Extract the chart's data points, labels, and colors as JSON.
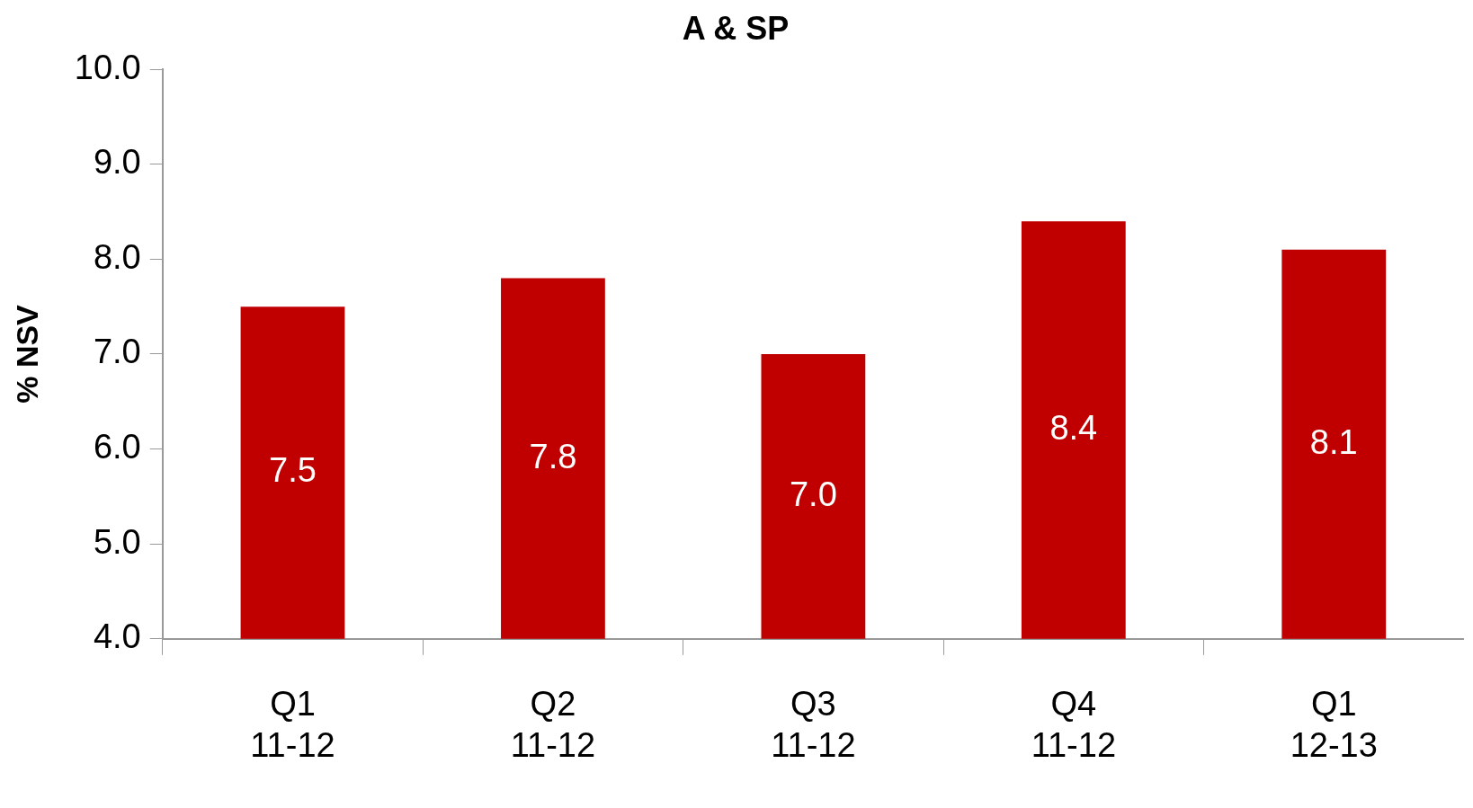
{
  "chart_data": {
    "type": "bar",
    "title": "A & SP",
    "ylabel": "% NSV",
    "categories": [
      "Q1\n11-12",
      "Q2\n11-12",
      "Q3\n11-12",
      "Q4\n11-12",
      "Q1\n12-13"
    ],
    "values": [
      7.5,
      7.8,
      7.0,
      8.4,
      8.1
    ],
    "color": "#c00000",
    "ylim": [
      4,
      10
    ],
    "yticks": [
      {
        "value": 4,
        "label": "4.0"
      },
      {
        "value": 5,
        "label": "5.0"
      },
      {
        "value": 6,
        "label": "6.0"
      },
      {
        "value": 7,
        "label": "7.0"
      },
      {
        "value": 8,
        "label": "8.0"
      },
      {
        "value": 9,
        "label": "9.0"
      },
      {
        "value": 10,
        "label": "10.0"
      }
    ],
    "value_labels": [
      "7.5",
      "7.8",
      "7.0",
      "8.4",
      "8.1"
    ],
    "grid": false,
    "legend": false
  }
}
